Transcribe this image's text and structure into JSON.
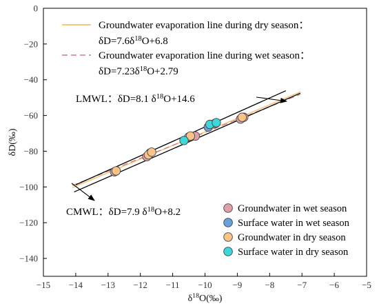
{
  "chart_data": {
    "type": "scatter",
    "xlabel": "δ18O(‰)",
    "ylabel": "δD(‰)",
    "xlim": [
      -15,
      -5
    ],
    "ylim": [
      -150,
      0
    ],
    "xticks": [
      -15,
      -14,
      -13,
      -12,
      -11,
      -10,
      -9,
      -8,
      -7,
      -6,
      -5
    ],
    "yticks": [
      0,
      -20,
      -40,
      -60,
      -80,
      -100,
      -120,
      -140
    ],
    "grid": false,
    "lines": [
      {
        "id": "dry-evap",
        "title": "Groundwater evaporation line during dry season：",
        "equation": "δD=7.6δ18O+6.8",
        "slope": 7.6,
        "intercept": 6.8,
        "x_range": [
          -14.1,
          -7.05
        ],
        "color": "#f5c77e",
        "style": "solid"
      },
      {
        "id": "wet-evap",
        "title": "Groundwater evaporation line during wet season：",
        "equation": "δD=7.23δ18O+2.79",
        "slope": 7.23,
        "intercept": 2.79,
        "x_range": [
          -14.1,
          -7.05
        ],
        "color": "#c97a86",
        "style": "dashed"
      },
      {
        "id": "lmwl",
        "label": "LMWL：δD=8.1 δ18O+14.6",
        "slope": 8.1,
        "intercept": 14.6,
        "x_range": [
          -14.0,
          -7.5
        ],
        "color": "#000000",
        "style": "solid"
      },
      {
        "id": "cmwl",
        "label": "CMWL：δD=7.9 δ18O+8.2",
        "slope": 7.9,
        "intercept": 8.2,
        "x_range": [
          -14.05,
          -7.05
        ],
        "color": "#000000",
        "style": "solid"
      }
    ],
    "series": [
      {
        "name": "Groundwater in wet season",
        "color": "#e0a0aa",
        "points": [
          [
            -12.8,
            -91.5
          ],
          [
            -11.8,
            -83
          ],
          [
            -11.7,
            -81
          ],
          [
            -10.5,
            -72
          ],
          [
            -10.3,
            -71.5
          ],
          [
            -8.9,
            -62
          ],
          [
            -8.8,
            -61
          ]
        ]
      },
      {
        "name": "Surface water in wet season",
        "color": "#6a9fd8",
        "points": [
          [
            -9.9,
            -66.5
          ],
          [
            -9.7,
            -64.5
          ]
        ]
      },
      {
        "name": "Groundwater in dry season",
        "color": "#f8c48a",
        "points": [
          [
            -12.75,
            -91
          ],
          [
            -11.75,
            -82
          ],
          [
            -11.65,
            -80.5
          ],
          [
            -10.45,
            -71.5
          ],
          [
            -8.85,
            -61
          ]
        ]
      },
      {
        "name": "Surface water in dry season",
        "color": "#3ed6d6",
        "points": [
          [
            -10.65,
            -74
          ],
          [
            -9.85,
            -65
          ],
          [
            -9.65,
            -64
          ]
        ]
      }
    ]
  }
}
